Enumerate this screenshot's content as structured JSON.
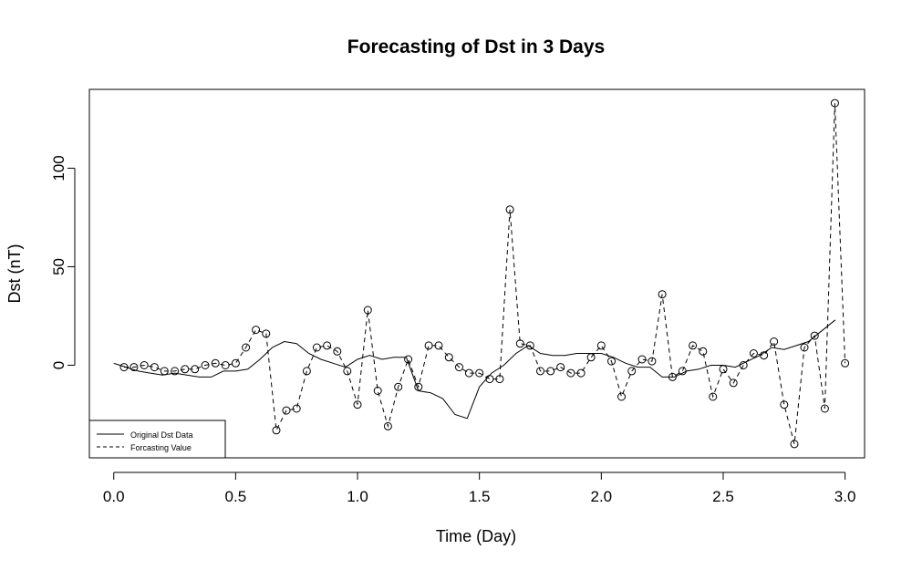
{
  "chart_data": {
    "type": "line",
    "title": "Forecasting of Dst in 3 Days",
    "xlabel": "Time (Day)",
    "ylabel": "Dst (nT)",
    "xlim": [
      -0.1,
      3.08
    ],
    "ylim": [
      -47,
      140
    ],
    "xticks": [
      0.0,
      0.5,
      1.0,
      1.5,
      2.0,
      2.5,
      3.0
    ],
    "xtick_labels": [
      "0.0",
      "0.5",
      "1.0",
      "1.5",
      "2.0",
      "2.5",
      "3.0"
    ],
    "yticks": [
      0,
      50,
      100
    ],
    "ytick_labels": [
      "0",
      "50",
      "100"
    ],
    "legend_position": "bottom-left",
    "series": [
      {
        "name": "Original Dst Data",
        "style": "solid",
        "x": [
          0.0,
          0.05,
          0.1,
          0.15,
          0.2,
          0.25,
          0.3,
          0.35,
          0.4,
          0.45,
          0.5,
          0.55,
          0.6,
          0.65,
          0.7,
          0.75,
          0.8,
          0.85,
          0.9,
          0.95,
          1.0,
          1.05,
          1.1,
          1.15,
          1.2,
          1.25,
          1.3,
          1.35,
          1.4,
          1.45,
          1.5,
          1.55,
          1.6,
          1.65,
          1.7,
          1.75,
          1.8,
          1.85,
          1.9,
          1.95,
          2.0,
          2.05,
          2.1,
          2.15,
          2.2,
          2.25,
          2.3,
          2.35,
          2.4,
          2.45,
          2.5,
          2.55,
          2.6,
          2.65,
          2.7,
          2.75,
          2.8,
          2.85,
          2.9,
          2.96
        ],
        "y": [
          1,
          -1,
          -3,
          -4,
          -5,
          -4,
          -5,
          -6,
          -6,
          -3,
          -3,
          -2,
          3,
          9,
          12,
          11,
          6,
          3,
          1,
          -1,
          3,
          5,
          3,
          4,
          4,
          -13,
          -14,
          -17,
          -25,
          -27,
          -11,
          -4,
          0,
          6,
          10,
          6,
          5,
          5,
          6,
          6,
          6,
          4,
          1,
          -1,
          -1,
          -6,
          -6,
          -3,
          -2,
          0,
          0,
          -1,
          2,
          5,
          9,
          8,
          10,
          12,
          17,
          23
        ]
      },
      {
        "name": "Forcasting Value",
        "style": "dashed",
        "markers": "open-circle",
        "x": [
          0.042,
          0.083,
          0.125,
          0.167,
          0.208,
          0.25,
          0.292,
          0.333,
          0.375,
          0.417,
          0.458,
          0.5,
          0.542,
          0.583,
          0.625,
          0.667,
          0.708,
          0.75,
          0.792,
          0.833,
          0.875,
          0.917,
          0.958,
          1.0,
          1.042,
          1.083,
          1.125,
          1.167,
          1.208,
          1.25,
          1.292,
          1.333,
          1.375,
          1.417,
          1.458,
          1.5,
          1.542,
          1.583,
          1.625,
          1.667,
          1.708,
          1.75,
          1.792,
          1.833,
          1.875,
          1.917,
          1.958,
          2.0,
          2.042,
          2.083,
          2.125,
          2.167,
          2.208,
          2.25,
          2.292,
          2.333,
          2.375,
          2.417,
          2.458,
          2.5,
          2.542,
          2.583,
          2.625,
          2.667,
          2.708,
          2.75,
          2.792,
          2.833,
          2.875,
          2.917,
          2.958,
          3.0
        ],
        "y": [
          -1,
          -1,
          0,
          -1,
          -3,
          -3,
          -2,
          -2,
          0,
          1,
          0,
          1,
          9,
          18,
          16,
          -33,
          -23,
          -22,
          -3,
          9,
          10,
          7,
          -3,
          -20,
          28,
          -13,
          -31,
          -11,
          3,
          -11,
          10,
          10,
          4,
          -1,
          -4,
          -4,
          -7,
          -7,
          79,
          11,
          10,
          -3,
          -3,
          -1,
          -4,
          -4,
          4,
          10,
          2,
          -16,
          -3,
          3,
          2,
          36,
          -6,
          -3,
          10,
          7,
          -16,
          -2,
          -9,
          0,
          6,
          5,
          12,
          -20,
          -40,
          9,
          15,
          -22,
          133,
          1
        ]
      }
    ]
  }
}
